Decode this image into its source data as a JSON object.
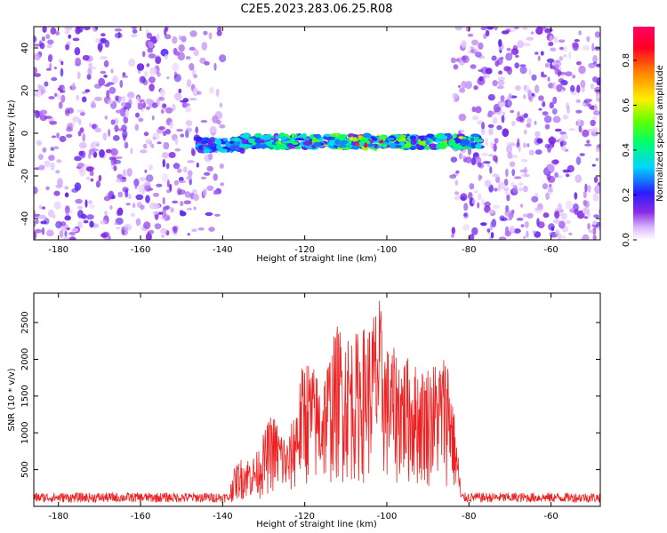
{
  "title": "C2E5.2023.283.06.25.R08",
  "colors": {
    "snr_line": "#ee2222",
    "speckle": "#9b2cf0",
    "frame": "#000000",
    "background": "#ffffff"
  },
  "chart_data": [
    {
      "type": "heatmap",
      "xlabel": "Height of straight line (km)",
      "ylabel": "Frequency (Hz)",
      "xlim": [
        -186,
        -48
      ],
      "ylim": [
        -50,
        50
      ],
      "x_ticks": [
        -180,
        -160,
        -140,
        -120,
        -100,
        -80,
        -60
      ],
      "y_ticks": [
        -40,
        -20,
        0,
        20,
        40
      ],
      "colorbar": {
        "label": "Normalized spectral amplitude",
        "range": [
          0,
          0.95
        ],
        "ticks": [
          0.0,
          0.2,
          0.4,
          0.6,
          0.8
        ],
        "colormap": "rainbow (violet to red)"
      },
      "features": {
        "strong_band_x_range": [
          -146,
          -77
        ],
        "strong_band_frequency_center": -4,
        "strong_band_halfwidth_hz": 3,
        "peak_amplitude": 0.9,
        "quiet_zone_x_range": [
          -140,
          -84
        ],
        "noise_level": 0.1
      }
    },
    {
      "type": "line",
      "xlabel": "Height of straight line (km)",
      "ylabel": "SNR (10 * v/v)",
      "xlim": [
        -186,
        -48
      ],
      "ylim": [
        0,
        2900
      ],
      "x_ticks": [
        -180,
        -160,
        -140,
        -120,
        -100,
        -80,
        -60
      ],
      "y_ticks": [
        500,
        1000,
        1500,
        2000,
        2500
      ],
      "envelope": {
        "x": [
          -186,
          -150,
          -140,
          -136,
          -132,
          -128,
          -124,
          -120,
          -116,
          -112,
          -108,
          -104,
          -102,
          -100,
          -96,
          -92,
          -88,
          -85,
          -82,
          -78,
          -70,
          -48
        ],
        "y": [
          120,
          130,
          180,
          650,
          700,
          1300,
          900,
          2100,
          1750,
          2500,
          2350,
          2550,
          2900,
          2200,
          2100,
          1900,
          2000,
          2150,
          350,
          270,
          180,
          160
        ]
      },
      "noise_floor": 150
    }
  ]
}
